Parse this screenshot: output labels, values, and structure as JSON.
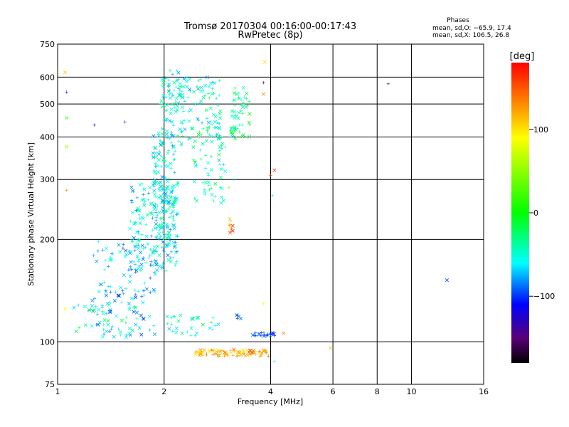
{
  "chart_data": {
    "type": "scatter",
    "title": "Tromsø 20170304 00:16:00-00:17:43",
    "subtitle": "RwPretec (8p)",
    "xlabel": "Frequency [MHz]",
    "ylabel": "Stationary phase Virtual Height [km]",
    "x_scale": "log",
    "y_scale": "log",
    "xlim": [
      1,
      16
    ],
    "ylim": [
      75,
      750
    ],
    "x_ticks": [
      1,
      2,
      4,
      6,
      8,
      10,
      16
    ],
    "x_tick_labels": [
      "1",
      "2",
      "4",
      "6",
      "8",
      "10",
      "16"
    ],
    "y_ticks": [
      75,
      100,
      200,
      300,
      400,
      500,
      600,
      750
    ],
    "y_tick_labels": [
      "75",
      "100",
      "200",
      "300",
      "400",
      "500",
      "600",
      "750"
    ],
    "grid": true,
    "stats": {
      "header": "Phases",
      "line_o": "mean, sd,O: −65.9, 17.4",
      "line_x": "mean, sd,X: 106.5, 26.8"
    },
    "colorbar": {
      "label": "[deg]",
      "range": [
        -180,
        180
      ],
      "ticks": [
        100,
        0,
        -100
      ],
      "tick_labels": [
        "100",
        "0",
        "−100"
      ],
      "colors": [
        "#ff0000",
        "#ff8c00",
        "#ffff00",
        "#00ff00",
        "#00ffff",
        "#0000ff",
        "#5a0078",
        "#000000"
      ]
    },
    "clusters": [
      {
        "f": [
          1.25,
          1.9
        ],
        "h": [
          103,
          200
        ],
        "phase": -75,
        "n": 130
      },
      {
        "f": [
          1.6,
          2.2
        ],
        "h": [
          160,
          300
        ],
        "phase": -60,
        "n": 180
      },
      {
        "f": [
          1.85,
          2.15
        ],
        "h": [
          200,
          420
        ],
        "phase": -55,
        "n": 150
      },
      {
        "f": [
          1.95,
          2.25
        ],
        "h": [
          400,
          630
        ],
        "phase": -50,
        "n": 70
      },
      {
        "f": [
          2.2,
          2.9
        ],
        "h": [
          380,
          600
        ],
        "phase": -55,
        "n": 90
      },
      {
        "f": [
          2.4,
          3.0
        ],
        "h": [
          250,
          390
        ],
        "phase": -45,
        "n": 50
      },
      {
        "f": [
          2.5,
          3.2
        ],
        "h": [
          390,
          430
        ],
        "phase": -40,
        "n": 25
      },
      {
        "f": [
          3.1,
          3.5
        ],
        "h": [
          400,
          560
        ],
        "phase": -30,
        "n": 45
      },
      {
        "f": [
          1.1,
          1.7
        ],
        "h": [
          107,
          130
        ],
        "phase": -40,
        "n": 30
      },
      {
        "f": [
          2.0,
          2.9
        ],
        "h": [
          104,
          120
        ],
        "phase": -45,
        "n": 30
      },
      {
        "f": [
          2.45,
          3.95
        ],
        "h": [
          91,
          95
        ],
        "phase": 120,
        "n": 90
      },
      {
        "f": [
          3.55,
          4.1
        ],
        "h": [
          104,
          107
        ],
        "phase": -100,
        "n": 25
      },
      {
        "f": [
          3.05,
          3.15
        ],
        "h": [
          208,
          232
        ],
        "phase": 140,
        "n": 10
      },
      {
        "f": [
          3.2,
          3.3
        ],
        "h": [
          117,
          120
        ],
        "phase": -90,
        "n": 5
      }
    ],
    "points": [
      {
        "x": 1.05,
        "y": 620,
        "phase": 110
      },
      {
        "x": 1.06,
        "y": 545,
        "phase": -110
      },
      {
        "x": 1.06,
        "y": 455,
        "phase": 20
      },
      {
        "x": 1.06,
        "y": 375,
        "phase": 60
      },
      {
        "x": 1.06,
        "y": 280,
        "phase": 130
      },
      {
        "x": 1.05,
        "y": 125,
        "phase": 90
      },
      {
        "x": 1.27,
        "y": 435,
        "phase": -130
      },
      {
        "x": 1.55,
        "y": 445,
        "phase": -100
      },
      {
        "x": 3.82,
        "y": 580,
        "phase": -170
      },
      {
        "x": 3.82,
        "y": 535,
        "phase": 130
      },
      {
        "x": 3.85,
        "y": 665,
        "phase": 100
      },
      {
        "x": 4.0,
        "y": 310,
        "phase": 170
      },
      {
        "x": 4.1,
        "y": 320,
        "phase": 160
      },
      {
        "x": 4.05,
        "y": 270,
        "phase": -50
      },
      {
        "x": 3.82,
        "y": 130,
        "phase": 90
      },
      {
        "x": 4.1,
        "y": 88,
        "phase": -60
      },
      {
        "x": 4.35,
        "y": 106,
        "phase": 130
      },
      {
        "x": 5.9,
        "y": 96,
        "phase": 110
      },
      {
        "x": 8.6,
        "y": 575,
        "phase": -160
      },
      {
        "x": 12.6,
        "y": 152,
        "phase": -100
      },
      {
        "x": 3.05,
        "y": 285,
        "phase": 50
      },
      {
        "x": 3.15,
        "y": 300,
        "phase": -40
      }
    ]
  }
}
